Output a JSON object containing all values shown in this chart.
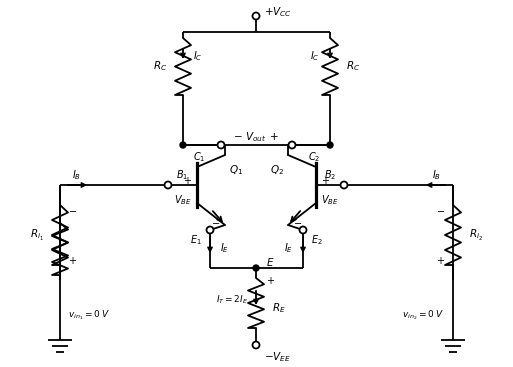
{
  "bg_color": "#ffffff",
  "line_color": "#000000",
  "fig_width": 5.13,
  "fig_height": 3.67,
  "dpi": 100
}
